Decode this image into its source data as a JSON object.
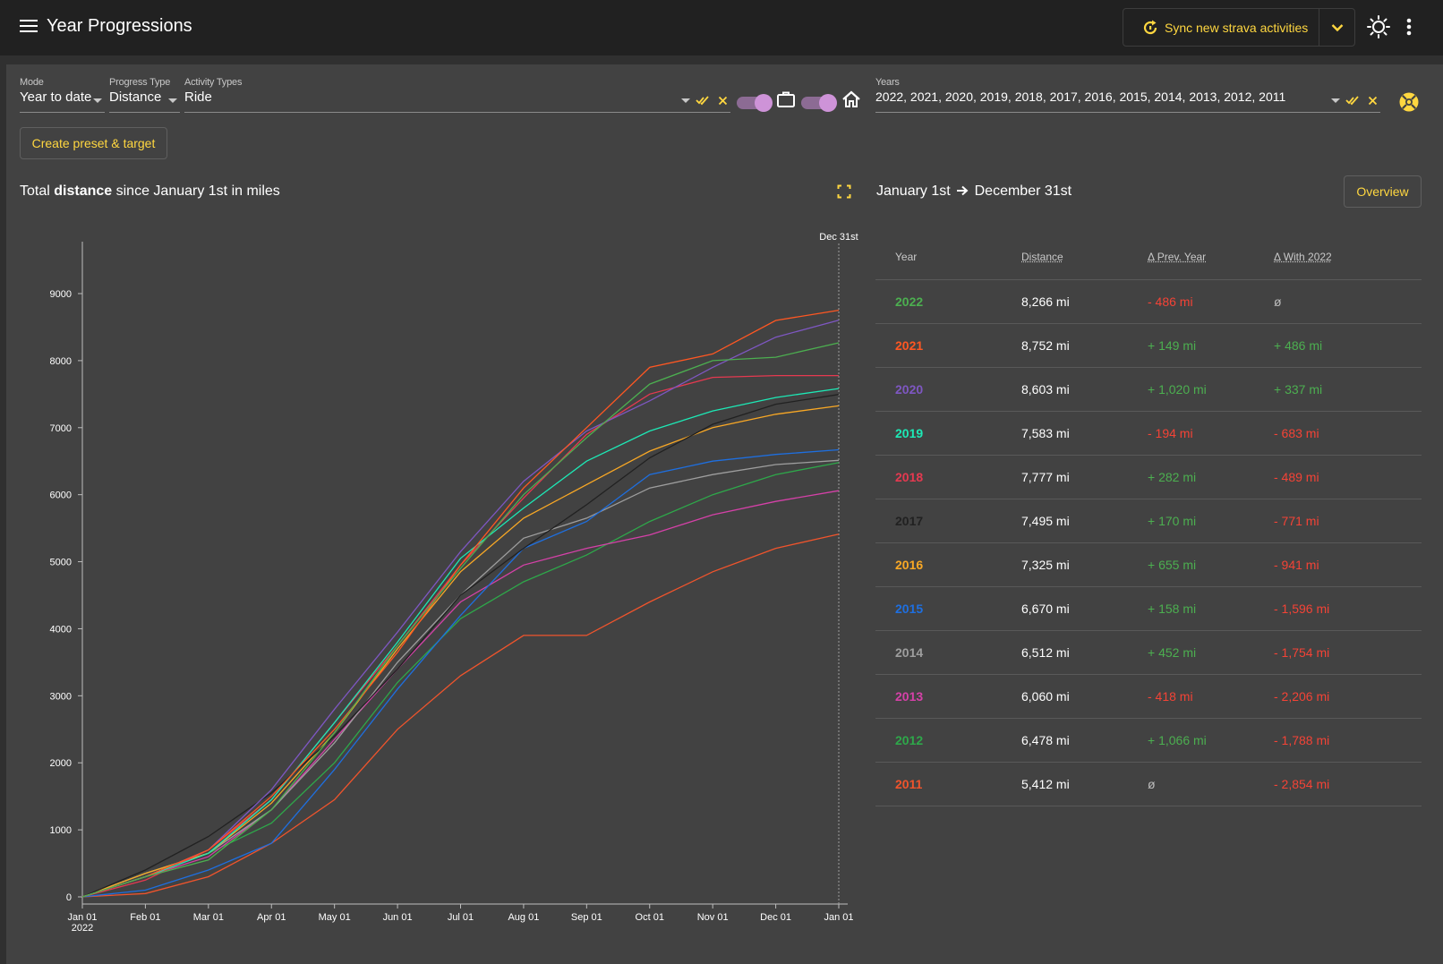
{
  "app": {
    "title": "Year Progressions"
  },
  "toolbar": {
    "sync_label": "Sync new strava activities"
  },
  "filters": {
    "mode": {
      "label": "Mode",
      "value": "Year to date"
    },
    "progress_type": {
      "label": "Progress Type",
      "value": "Distance"
    },
    "activity_types": {
      "label": "Activity Types",
      "value": "Ride"
    },
    "years": {
      "label": "Years",
      "value": "2022, 2021, 2020, 2019, 2018, 2017, 2016, 2015, 2014, 2013, 2012, 2011"
    },
    "toggle_commute": true,
    "toggle_trainer": true
  },
  "actions": {
    "create_preset": "Create preset & target",
    "overview": "Overview"
  },
  "chart_title": {
    "prefix": "Total ",
    "bold": "distance",
    "suffix": " since January 1st in miles"
  },
  "period": {
    "from": "January 1st",
    "to": "December 31st"
  },
  "table": {
    "headers": [
      "Year",
      "Distance",
      "Δ Prev. Year",
      "Δ With 2022"
    ],
    "rows": [
      {
        "year": "2022",
        "distance": "8,266 mi",
        "prev": "- 486 mi",
        "with": "ø",
        "color": "#4caf50"
      },
      {
        "year": "2021",
        "distance": "8,752 mi",
        "prev": "+ 149 mi",
        "with": "+ 486 mi",
        "color": "#ff5722"
      },
      {
        "year": "2020",
        "distance": "8,603 mi",
        "prev": "+ 1,020 mi",
        "with": "+ 337 mi",
        "color": "#7e57c2"
      },
      {
        "year": "2019",
        "distance": "7,583 mi",
        "prev": "- 194 mi",
        "with": "- 683 mi",
        "color": "#1de9b6"
      },
      {
        "year": "2018",
        "distance": "7,777 mi",
        "prev": "+ 282 mi",
        "with": "- 489 mi",
        "color": "#e53950"
      },
      {
        "year": "2017",
        "distance": "7,495 mi",
        "prev": "+ 170 mi",
        "with": "- 771 mi",
        "color": "#212121"
      },
      {
        "year": "2016",
        "distance": "7,325 mi",
        "prev": "+ 655 mi",
        "with": "- 941 mi",
        "color": "#f9a825"
      },
      {
        "year": "2015",
        "distance": "6,670 mi",
        "prev": "+ 158 mi",
        "with": "- 1,596 mi",
        "color": "#1e6fe0"
      },
      {
        "year": "2014",
        "distance": "6,512 mi",
        "prev": "+ 452 mi",
        "with": "- 1,754 mi",
        "color": "#9e9e9e"
      },
      {
        "year": "2013",
        "distance": "6,060 mi",
        "prev": "- 418 mi",
        "with": "- 2,206 mi",
        "color": "#d541a8"
      },
      {
        "year": "2012",
        "distance": "6,478 mi",
        "prev": "+ 1,066 mi",
        "with": "- 1,788 mi",
        "color": "#2ea84a"
      },
      {
        "year": "2011",
        "distance": "5,412 mi",
        "prev": "ø",
        "with": "- 2,854 mi",
        "color": "#f0542c"
      }
    ]
  },
  "chart_data": {
    "type": "line",
    "title": "Total distance since January 1st in miles",
    "x_ticks": [
      "Jan 01",
      "Feb 01",
      "Mar 01",
      "Apr 01",
      "May 01",
      "Jun 01",
      "Jul 01",
      "Aug 01",
      "Sep 01",
      "Oct 01",
      "Nov 01",
      "Dec 01",
      "Jan 01"
    ],
    "x_sub_label": "2022",
    "y_ticks": [
      0,
      1000,
      2000,
      3000,
      4000,
      5000,
      6000,
      7000,
      8000,
      9000
    ],
    "ylim": [
      0,
      9500
    ],
    "marker_label": "Dec 31st",
    "x_unit": "month",
    "x_points": [
      0,
      1,
      2,
      3,
      4,
      5,
      6,
      7,
      8,
      9,
      10,
      11,
      12
    ],
    "series": [
      {
        "name": "2022",
        "color": "#4caf50",
        "values": [
          0,
          300,
          550,
          1300,
          2450,
          3750,
          4900,
          6000,
          6850,
          7650,
          8000,
          8050,
          8266
        ]
      },
      {
        "name": "2021",
        "color": "#ff5722",
        "values": [
          0,
          300,
          700,
          1500,
          2500,
          3650,
          4950,
          6100,
          7000,
          7900,
          8100,
          8600,
          8752
        ]
      },
      {
        "name": "2020",
        "color": "#7e57c2",
        "values": [
          0,
          300,
          700,
          1600,
          2800,
          3950,
          5150,
          6200,
          6950,
          7400,
          7900,
          8350,
          8603
        ]
      },
      {
        "name": "2019",
        "color": "#1de9b6",
        "values": [
          0,
          300,
          650,
          1450,
          2600,
          3800,
          5050,
          5800,
          6500,
          6950,
          7250,
          7450,
          7583
        ]
      },
      {
        "name": "2018",
        "color": "#e53950",
        "values": [
          0,
          250,
          700,
          1450,
          2600,
          3750,
          4950,
          5950,
          6900,
          7500,
          7750,
          7777,
          7777
        ]
      },
      {
        "name": "2017",
        "color": "#212121",
        "values": [
          0,
          400,
          900,
          1550,
          2400,
          3400,
          4500,
          5200,
          5850,
          6550,
          7050,
          7350,
          7495
        ]
      },
      {
        "name": "2016",
        "color": "#f9a825",
        "values": [
          0,
          350,
          650,
          1400,
          2450,
          3700,
          4850,
          5650,
          6150,
          6650,
          7000,
          7200,
          7325
        ]
      },
      {
        "name": "2015",
        "color": "#1e6fe0",
        "values": [
          0,
          100,
          400,
          800,
          1900,
          3100,
          4200,
          5200,
          5600,
          6300,
          6500,
          6600,
          6670
        ]
      },
      {
        "name": "2014",
        "color": "#9e9e9e",
        "values": [
          0,
          350,
          650,
          1300,
          2300,
          3500,
          4500,
          5350,
          5650,
          6100,
          6300,
          6450,
          6512
        ]
      },
      {
        "name": "2013",
        "color": "#d541a8",
        "values": [
          0,
          300,
          600,
          1300,
          2350,
          3400,
          4400,
          4950,
          5200,
          5400,
          5700,
          5900,
          6060
        ]
      },
      {
        "name": "2012",
        "color": "#2ea84a",
        "values": [
          0,
          350,
          650,
          1100,
          2000,
          3200,
          4150,
          4700,
          5100,
          5600,
          6000,
          6300,
          6478
        ]
      },
      {
        "name": "2011",
        "color": "#f0542c",
        "values": [
          0,
          50,
          300,
          800,
          1450,
          2500,
          3300,
          3900,
          3900,
          4400,
          4850,
          5200,
          5412
        ]
      }
    ]
  }
}
